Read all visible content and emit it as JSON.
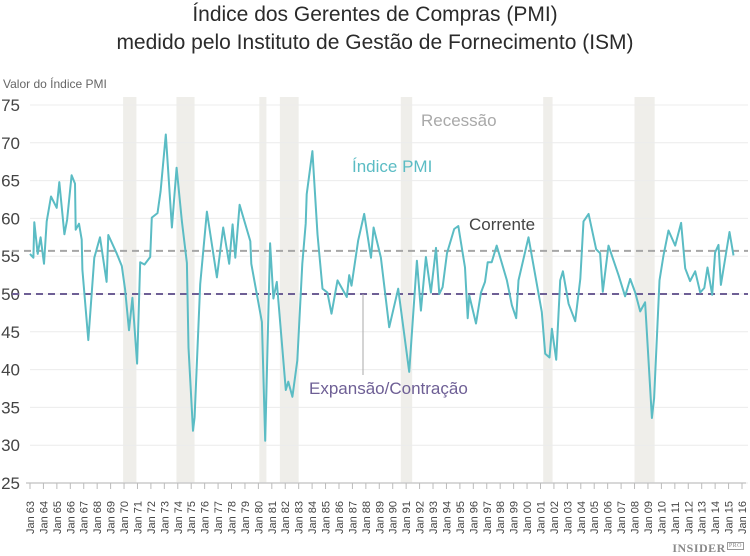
{
  "chart_data": {
    "type": "line",
    "title": "Índice dos Gerentes de Compras (PMI)",
    "subtitle": "medido pelo Instituto de Gestão de Fornecimento (ISM)",
    "ylabel": "Valor do Índice PMI",
    "xlabel": "",
    "ylim": [
      25,
      75
    ],
    "yticks": [
      25,
      30,
      35,
      40,
      45,
      50,
      55,
      60,
      65,
      70,
      75
    ],
    "xlim": [
      1963,
      2016
    ],
    "xtick_labels": [
      "Jan 63",
      "Jan 64",
      "Jan 65",
      "Jan 66",
      "Jan 67",
      "Jan 68",
      "Jan 69",
      "Jan 70",
      "Jan 71",
      "Jan 72",
      "Jan 73",
      "Jan 74",
      "Jan 75",
      "Jan 76",
      "Jan 77",
      "Jan 78",
      "Jan 79",
      "Jan 80",
      "Jan 81",
      "Jan 82",
      "Jan 83",
      "Jan 84",
      "Jan 85",
      "Jan 86",
      "Jan 87",
      "Jan 88",
      "Jan 89",
      "Jan 90",
      "Jan 91",
      "Jan 92",
      "Jan 93",
      "Jan 94",
      "Jan 95",
      "Jan 96",
      "Jan 97",
      "Jan 98",
      "Jan 99",
      "Jan 00",
      "Jan 01",
      "Jan 02",
      "Jan 03",
      "Jan 04",
      "Jan 05",
      "Jan 06",
      "Jan 07",
      "Jan 08",
      "Jan 09",
      "Jan 10",
      "Jan 11",
      "Jan 12",
      "Jan 13",
      "Jan 14",
      "Jan 15",
      "Jan 16"
    ],
    "grid": true,
    "series": [
      {
        "name": "Índice PMI",
        "color": "#5bbcc4",
        "points": [
          [
            1963.0,
            55.3
          ],
          [
            1963.25,
            54.8
          ],
          [
            1963.32,
            59.5
          ],
          [
            1963.57,
            55.3
          ],
          [
            1963.79,
            57.5
          ],
          [
            1964.04,
            54.0
          ],
          [
            1964.24,
            59.6
          ],
          [
            1964.56,
            62.9
          ],
          [
            1964.99,
            61.4
          ],
          [
            1965.18,
            64.8
          ],
          [
            1965.56,
            57.9
          ],
          [
            1965.76,
            59.8
          ],
          [
            1966.1,
            65.7
          ],
          [
            1966.35,
            64.6
          ],
          [
            1966.4,
            58.5
          ],
          [
            1966.65,
            59.3
          ],
          [
            1966.85,
            57.2
          ],
          [
            1966.9,
            53.2
          ],
          [
            1967.34,
            43.9
          ],
          [
            1967.79,
            54.8
          ],
          [
            1968.21,
            57.5
          ],
          [
            1968.7,
            51.6
          ],
          [
            1968.83,
            57.8
          ],
          [
            1969.45,
            55.4
          ],
          [
            1969.83,
            53.7
          ],
          [
            1970.08,
            50.6
          ],
          [
            1970.37,
            45.2
          ],
          [
            1970.62,
            49.5
          ],
          [
            1970.97,
            40.8
          ],
          [
            1971.2,
            54.2
          ],
          [
            1971.52,
            53.9
          ],
          [
            1971.95,
            54.9
          ],
          [
            1972.07,
            60.1
          ],
          [
            1972.49,
            60.7
          ],
          [
            1972.72,
            63.6
          ],
          [
            1973.11,
            71.1
          ],
          [
            1973.56,
            58.8
          ],
          [
            1973.91,
            66.7
          ],
          [
            1974.31,
            59.6
          ],
          [
            1974.68,
            54.1
          ],
          [
            1974.8,
            42.9
          ],
          [
            1975.13,
            31.9
          ],
          [
            1975.25,
            33.7
          ],
          [
            1975.67,
            51.3
          ],
          [
            1976.17,
            60.9
          ],
          [
            1976.91,
            52.2
          ],
          [
            1977.38,
            58.8
          ],
          [
            1977.83,
            54.0
          ],
          [
            1978.08,
            59.2
          ],
          [
            1978.28,
            54.8
          ],
          [
            1978.6,
            61.8
          ],
          [
            1979.4,
            57.0
          ],
          [
            1979.47,
            54.0
          ],
          [
            1980.26,
            46.3
          ],
          [
            1980.51,
            30.6
          ],
          [
            1980.87,
            56.7
          ],
          [
            1981.12,
            49.4
          ],
          [
            1981.37,
            51.6
          ],
          [
            1982.04,
            37.3
          ],
          [
            1982.23,
            38.4
          ],
          [
            1982.53,
            36.4
          ],
          [
            1982.9,
            41.2
          ],
          [
            1983.27,
            54.0
          ],
          [
            1983.52,
            59.3
          ],
          [
            1983.6,
            63.2
          ],
          [
            1984.02,
            68.9
          ],
          [
            1984.4,
            57.9
          ],
          [
            1984.77,
            50.7
          ],
          [
            1985.14,
            50.2
          ],
          [
            1985.44,
            47.4
          ],
          [
            1985.89,
            51.8
          ],
          [
            1986.58,
            49.6
          ],
          [
            1986.76,
            52.5
          ],
          [
            1986.93,
            51.1
          ],
          [
            1987.43,
            57.1
          ],
          [
            1987.88,
            60.6
          ],
          [
            1988.38,
            54.8
          ],
          [
            1988.58,
            58.8
          ],
          [
            1989.12,
            54.8
          ],
          [
            1989.74,
            45.6
          ],
          [
            1990.41,
            50.7
          ],
          [
            1991.23,
            39.7
          ],
          [
            1991.8,
            54.4
          ],
          [
            1992.1,
            47.8
          ],
          [
            1992.47,
            54.9
          ],
          [
            1992.84,
            50.2
          ],
          [
            1993.22,
            56.1
          ],
          [
            1993.47,
            50.0
          ],
          [
            1993.71,
            50.9
          ],
          [
            1994.04,
            55.4
          ],
          [
            1994.58,
            58.6
          ],
          [
            1994.88,
            59.0
          ],
          [
            1995.38,
            53.5
          ],
          [
            1995.58,
            46.8
          ],
          [
            1995.7,
            49.8
          ],
          [
            1996.2,
            46.1
          ],
          [
            1996.57,
            50.2
          ],
          [
            1996.87,
            51.6
          ],
          [
            1997.07,
            54.2
          ],
          [
            1997.37,
            54.2
          ],
          [
            1997.74,
            56.4
          ],
          [
            1998.5,
            51.8
          ],
          [
            1998.87,
            48.5
          ],
          [
            1999.19,
            46.8
          ],
          [
            1999.36,
            51.8
          ],
          [
            2000.11,
            57.5
          ],
          [
            2001.1,
            47.6
          ],
          [
            2001.35,
            42.1
          ],
          [
            2001.67,
            41.6
          ],
          [
            2001.85,
            45.4
          ],
          [
            2002.17,
            41.3
          ],
          [
            2002.47,
            51.8
          ],
          [
            2002.67,
            53.0
          ],
          [
            2003.09,
            48.7
          ],
          [
            2003.58,
            46.4
          ],
          [
            2003.96,
            52.0
          ],
          [
            2004.2,
            59.6
          ],
          [
            2004.58,
            60.6
          ],
          [
            2005.15,
            55.9
          ],
          [
            2005.44,
            55.4
          ],
          [
            2005.64,
            50.3
          ],
          [
            2006.06,
            56.4
          ],
          [
            2006.81,
            52.5
          ],
          [
            2007.3,
            49.7
          ],
          [
            2007.68,
            52.0
          ],
          [
            2008.05,
            50.2
          ],
          [
            2008.42,
            47.7
          ],
          [
            2008.79,
            48.9
          ],
          [
            2009.29,
            33.6
          ],
          [
            2009.46,
            36.2
          ],
          [
            2009.86,
            51.8
          ],
          [
            2010.16,
            55.1
          ],
          [
            2010.53,
            58.4
          ],
          [
            2011.03,
            56.4
          ],
          [
            2011.47,
            59.4
          ],
          [
            2011.77,
            53.4
          ],
          [
            2012.14,
            51.7
          ],
          [
            2012.52,
            53.0
          ],
          [
            2012.89,
            50.2
          ],
          [
            2013.19,
            50.8
          ],
          [
            2013.43,
            53.5
          ],
          [
            2013.78,
            49.9
          ],
          [
            2014.0,
            55.5
          ],
          [
            2014.25,
            56.5
          ],
          [
            2014.43,
            51.2
          ],
          [
            2015.07,
            58.2
          ],
          [
            2015.37,
            55.1
          ]
        ]
      }
    ],
    "recessions": [
      [
        1969.93,
        1970.92
      ],
      [
        1973.9,
        1975.25
      ],
      [
        1980.07,
        1980.6
      ],
      [
        1981.6,
        1983.0
      ],
      [
        1990.6,
        1991.45
      ],
      [
        2001.2,
        2001.9
      ],
      [
        2008.0,
        2009.5
      ]
    ],
    "reference_lines": [
      {
        "label": "Corrente",
        "value": 55.7,
        "color": "#a6a6a6"
      },
      {
        "label": "Expansão/Contração",
        "value": 50,
        "color": "#6e5f95"
      }
    ],
    "annotations": {
      "series_label": "Índice PMI",
      "recession_label": "Recessão"
    },
    "colors": {
      "recession": "#efeeea",
      "grid": "#ececec"
    }
  },
  "branding": {
    "logo": "INSIDER",
    "logo_suffix": "PRO"
  }
}
